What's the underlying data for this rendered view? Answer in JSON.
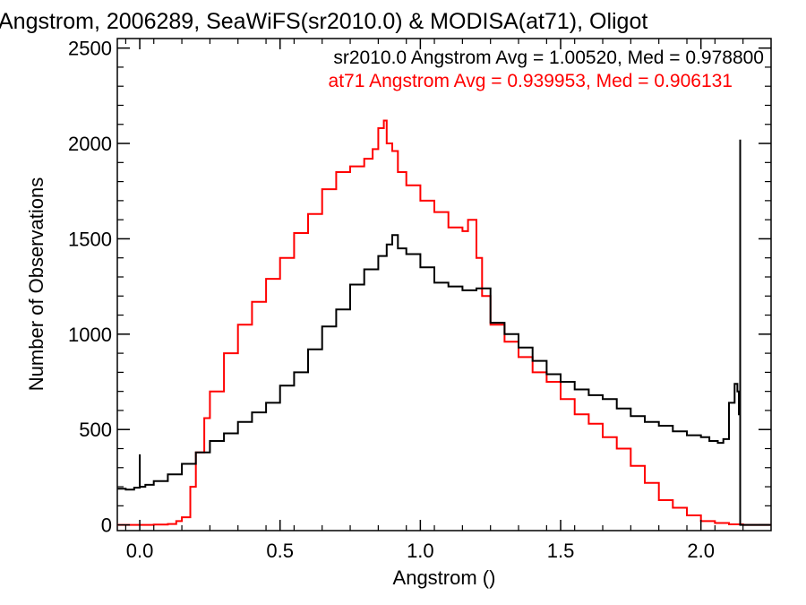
{
  "chart_data": {
    "type": "line",
    "title": "Angstrom, 2006289, SeaWiFS(sr2010.0) & MODISA(at71), Oligot",
    "xlabel": "Angstrom ()",
    "ylabel": "Number of Observations",
    "xlim": [
      -0.08,
      2.25
    ],
    "ylim": [
      -30,
      2550
    ],
    "xticks": [
      0.0,
      0.5,
      1.0,
      1.5,
      2.0
    ],
    "xtick_labels": [
      "0.0",
      "0.5",
      "1.0",
      "1.5",
      "2.0"
    ],
    "yticks": [
      0,
      500,
      1000,
      1500,
      2000,
      2500
    ],
    "ytick_labels": [
      "0",
      "500",
      "1000",
      "1500",
      "2000",
      "2500"
    ],
    "grid": false,
    "annotations": [
      {
        "text": "sr2010.0 Angstrom Avg = 1.00520, Med = 0.978800",
        "color": "#000000"
      },
      {
        "text": "at71 Angstrom Avg = 0.939953, Med = 0.906131",
        "color": "#ff0000"
      }
    ],
    "series": [
      {
        "color": "#000000",
        "x": [
          -0.08,
          -0.05,
          -0.02,
          0.0,
          0.0,
          0.02,
          0.05,
          0.1,
          0.15,
          0.2,
          0.25,
          0.3,
          0.35,
          0.4,
          0.45,
          0.5,
          0.55,
          0.6,
          0.65,
          0.7,
          0.75,
          0.8,
          0.85,
          0.88,
          0.9,
          0.92,
          0.95,
          1.0,
          1.05,
          1.1,
          1.15,
          1.2,
          1.25,
          1.3,
          1.35,
          1.4,
          1.45,
          1.5,
          1.55,
          1.6,
          1.65,
          1.7,
          1.75,
          1.8,
          1.85,
          1.9,
          1.95,
          2.0,
          2.03,
          2.06,
          2.08,
          2.1,
          2.12,
          2.13,
          2.135,
          2.14,
          2.14,
          2.145,
          2.25
        ],
        "y": [
          190,
          185,
          195,
          370,
          200,
          210,
          230,
          265,
          320,
          380,
          440,
          480,
          540,
          590,
          640,
          730,
          800,
          920,
          1040,
          1130,
          1260,
          1340,
          1410,
          1470,
          1520,
          1450,
          1420,
          1350,
          1270,
          1250,
          1230,
          1240,
          1060,
          1000,
          930,
          860,
          790,
          750,
          710,
          680,
          660,
          610,
          570,
          540,
          520,
          490,
          470,
          460,
          440,
          430,
          450,
          640,
          740,
          700,
          580,
          2020,
          0,
          0,
          0
        ]
      },
      {
        "color": "#ff0000",
        "x": [
          -0.08,
          0.0,
          0.05,
          0.1,
          0.13,
          0.15,
          0.18,
          0.2,
          0.23,
          0.25,
          0.3,
          0.35,
          0.4,
          0.45,
          0.5,
          0.55,
          0.6,
          0.65,
          0.7,
          0.75,
          0.8,
          0.83,
          0.85,
          0.87,
          0.88,
          0.9,
          0.92,
          0.95,
          1.0,
          1.05,
          1.1,
          1.15,
          1.17,
          1.2,
          1.22,
          1.25,
          1.3,
          1.35,
          1.4,
          1.45,
          1.5,
          1.55,
          1.6,
          1.65,
          1.7,
          1.75,
          1.8,
          1.85,
          1.9,
          1.95,
          2.0,
          2.05,
          2.1,
          2.15,
          2.25
        ],
        "y": [
          0,
          0,
          2,
          5,
          20,
          40,
          200,
          380,
          560,
          700,
          900,
          1050,
          1170,
          1290,
          1400,
          1530,
          1630,
          1760,
          1850,
          1880,
          1920,
          1970,
          2080,
          2120,
          2000,
          1960,
          1850,
          1780,
          1700,
          1640,
          1560,
          1540,
          1600,
          1400,
          1200,
          1050,
          960,
          880,
          800,
          750,
          660,
          580,
          530,
          460,
          400,
          310,
          220,
          130,
          90,
          50,
          20,
          10,
          3,
          0,
          0
        ]
      }
    ]
  }
}
